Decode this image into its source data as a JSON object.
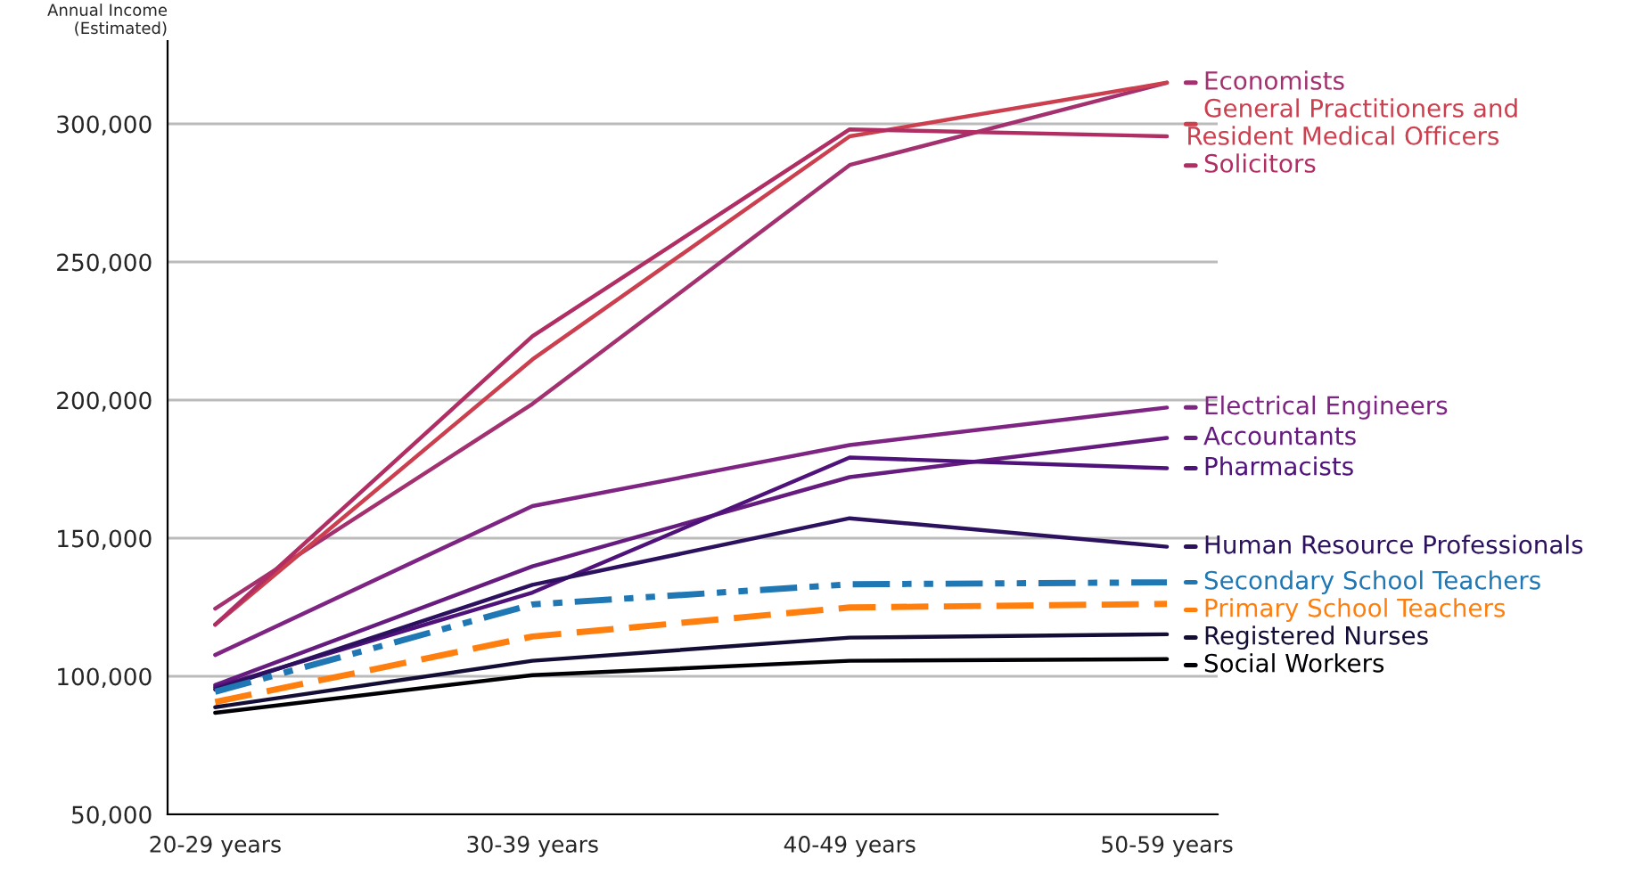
{
  "chart_data": {
    "type": "line",
    "ylabel": "Annual Income\n(Estimated)",
    "categories": [
      "20-29 years",
      "30-39 years",
      "40-49 years",
      "50-59 years"
    ],
    "series": [
      {
        "name": "Economists",
        "color": "#a3306f",
        "values": [
          124500,
          198600,
          285100,
          314900
        ]
      },
      {
        "name": "General Practitioners and\nResident Medical Officers",
        "color": "#cc3f4f",
        "values": [
          118700,
          214700,
          295500,
          314900
        ]
      },
      {
        "name": "Solicitors",
        "color": "#b02e63",
        "values": [
          118700,
          223100,
          298000,
          295500
        ]
      },
      {
        "name": "Electrical Engineers",
        "color": "#7e2482",
        "values": [
          107700,
          161600,
          183700,
          197300
        ]
      },
      {
        "name": "Accountants",
        "color": "#661c7e",
        "values": [
          96800,
          139800,
          172100,
          186300
        ]
      },
      {
        "name": "Pharmacists",
        "color": "#4f127b",
        "values": [
          96000,
          130300,
          179200,
          175300
        ]
      },
      {
        "name": "Human Resource Professionals",
        "color": "#2c115f",
        "values": [
          95200,
          133100,
          157200,
          146900
        ]
      },
      {
        "name": "Secondary School Teachers",
        "color": "#1f77b4",
        "line_style": "dashdot",
        "values": [
          94400,
          126000,
          133300,
          134000
        ]
      },
      {
        "name": "Primary School Teachers",
        "color": "#ff7f0e",
        "line_style": "dashed",
        "values": [
          90700,
          114400,
          124900,
          126200
        ]
      },
      {
        "name": "Registered Nurses",
        "color": "#140e36",
        "values": [
          88800,
          105600,
          114000,
          115200
        ]
      },
      {
        "name": "Social Workers",
        "color": "#000004",
        "values": [
          86800,
          100400,
          105600,
          106200
        ]
      }
    ],
    "ylim": [
      50000,
      330000
    ],
    "yticks": [
      {
        "value": 50000,
        "label": "50,000"
      },
      {
        "value": 100000,
        "label": "100,000"
      },
      {
        "value": 150000,
        "label": "150,000"
      },
      {
        "value": 200000,
        "label": "200,000"
      },
      {
        "value": 250000,
        "label": "250,000"
      },
      {
        "value": 300000,
        "label": "300,000"
      }
    ],
    "grid": "y",
    "legend": "right",
    "line_style": "solid",
    "marker": "none"
  }
}
